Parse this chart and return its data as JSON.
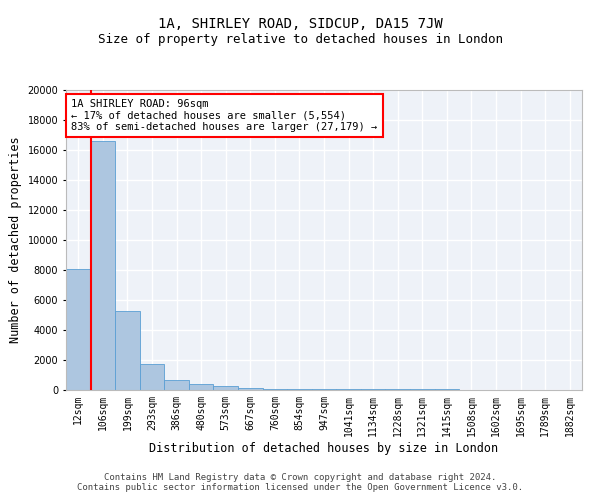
{
  "title_line1": "1A, SHIRLEY ROAD, SIDCUP, DA15 7JW",
  "title_line2": "Size of property relative to detached houses in London",
  "xlabel": "Distribution of detached houses by size in London",
  "ylabel": "Number of detached properties",
  "bar_values": [
    8100,
    16600,
    5300,
    1750,
    700,
    380,
    250,
    150,
    100,
    80,
    70,
    60,
    50,
    45,
    40,
    35,
    30,
    25,
    20,
    15,
    10
  ],
  "categories": [
    "12sqm",
    "106sqm",
    "199sqm",
    "293sqm",
    "386sqm",
    "480sqm",
    "573sqm",
    "667sqm",
    "760sqm",
    "854sqm",
    "947sqm",
    "1041sqm",
    "1134sqm",
    "1228sqm",
    "1321sqm",
    "1415sqm",
    "1508sqm",
    "1602sqm",
    "1695sqm",
    "1789sqm",
    "1882sqm"
  ],
  "bar_color": "#adc6e0",
  "bar_edge_color": "#5a9fd4",
  "red_line_index": 1,
  "annotation_title": "1A SHIRLEY ROAD: 96sqm",
  "annotation_line2": "← 17% of detached houses are smaller (5,554)",
  "annotation_line3": "83% of semi-detached houses are larger (27,179) →",
  "ylim": [
    0,
    20000
  ],
  "yticks": [
    0,
    2000,
    4000,
    6000,
    8000,
    10000,
    12000,
    14000,
    16000,
    18000,
    20000
  ],
  "footer_line1": "Contains HM Land Registry data © Crown copyright and database right 2024.",
  "footer_line2": "Contains public sector information licensed under the Open Government Licence v3.0.",
  "background_color": "#eef2f8",
  "grid_color": "white",
  "title_fontsize": 10,
  "subtitle_fontsize": 9,
  "axis_label_fontsize": 8.5,
  "tick_fontsize": 7,
  "annotation_fontsize": 7.5,
  "footer_fontsize": 6.5
}
